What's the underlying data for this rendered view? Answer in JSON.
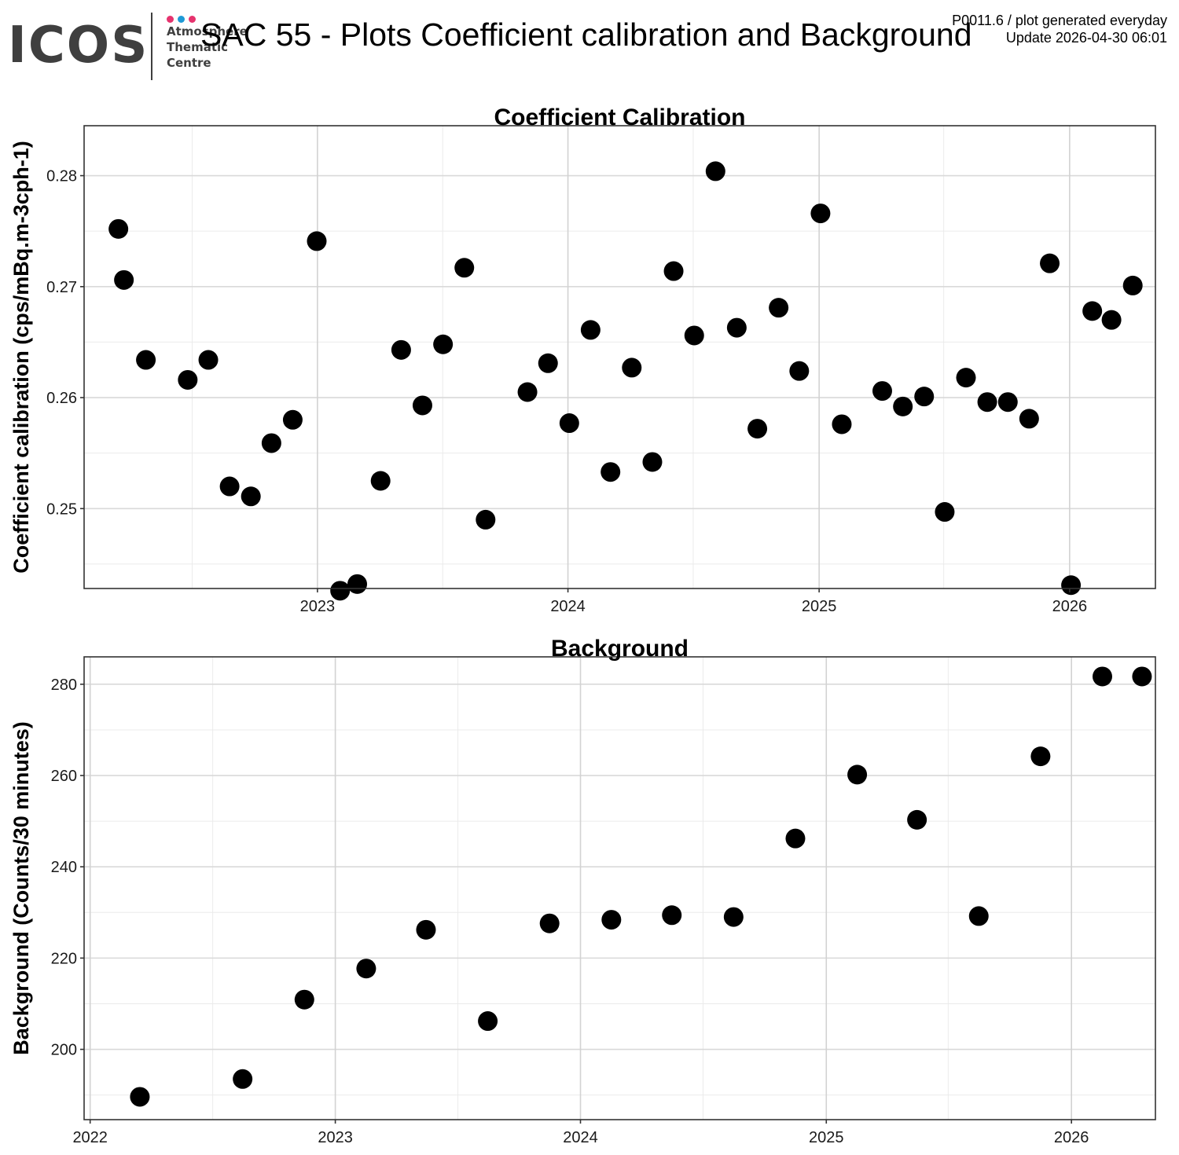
{
  "header": {
    "logo_text": "ICOS",
    "logo_subtitle": [
      "Atmosphere",
      "Thematic",
      "Centre"
    ],
    "logo_dot_colors": [
      "#e6336e",
      "#1e9ad6",
      "#e6336e"
    ],
    "title": "SAC 55 - Plots Coefficient calibration and Background",
    "meta_line1": "P0011.6 / plot generated everyday",
    "meta_line2": "Update  2026-04-30 06:01"
  },
  "chart_data": [
    {
      "type": "scatter",
      "title": "Coefficient Calibration",
      "xlabel": "",
      "ylabel": "Coefficient calibration (cps/mBq.m-3cph-1)",
      "xlim": [
        "2022-01-26",
        "2026-05-06"
      ],
      "ylim": [
        0.2428,
        0.2845
      ],
      "x_ticks": [
        "2023-01-01",
        "2024-01-01",
        "2025-01-01",
        "2026-01-01"
      ],
      "x_tick_labels": [
        "2023",
        "2024",
        "2025",
        "2026"
      ],
      "y_ticks": [
        0.25,
        0.26,
        0.27,
        0.28
      ],
      "y_tick_labels": [
        "0.25",
        "0.26",
        "0.27",
        "0.28"
      ],
      "grid": true,
      "point_color": "#000000",
      "x": [
        "2022-03-17",
        "2022-03-25",
        "2022-04-26",
        "2022-06-26",
        "2022-07-26",
        "2022-08-26",
        "2022-09-26",
        "2022-10-26",
        "2022-11-26",
        "2022-12-31",
        "2023-02-03",
        "2023-02-28",
        "2023-04-03",
        "2023-05-03",
        "2023-06-03",
        "2023-07-03",
        "2023-08-03",
        "2023-09-03",
        "2023-11-03",
        "2023-12-03",
        "2024-01-03",
        "2024-02-03",
        "2024-03-03",
        "2024-04-03",
        "2024-05-03",
        "2024-06-03",
        "2024-07-03",
        "2024-08-03",
        "2024-09-03",
        "2024-10-03",
        "2024-11-03",
        "2024-12-03",
        "2025-01-03",
        "2025-02-03",
        "2025-04-03",
        "2025-05-03",
        "2025-06-03",
        "2025-07-03",
        "2025-08-03",
        "2025-09-03",
        "2025-10-03",
        "2025-11-03",
        "2025-12-03",
        "2026-01-03",
        "2026-02-03",
        "2026-03-03",
        "2026-04-03"
      ],
      "y": [
        0.2752,
        0.2706,
        0.2634,
        0.2616,
        0.2634,
        0.252,
        0.2511,
        0.2559,
        0.258,
        0.2741,
        0.2426,
        0.2432,
        0.2525,
        0.2643,
        0.2593,
        0.2648,
        0.2717,
        0.249,
        0.2605,
        0.2631,
        0.2577,
        0.2661,
        0.2533,
        0.2627,
        0.2542,
        0.2714,
        0.2656,
        0.2804,
        0.2663,
        0.2572,
        0.2681,
        0.2624,
        0.2766,
        0.2576,
        0.2606,
        0.2592,
        0.2601,
        0.2497,
        0.2618,
        0.2596,
        0.2596,
        0.2581,
        0.2721,
        0.2431,
        0.2678,
        0.267,
        0.2701
      ]
    },
    {
      "type": "scatter",
      "title": "Background",
      "xlabel": "",
      "ylabel": "Background (Counts/30 minutes)",
      "xlim": [
        "2021-12-23",
        "2026-05-06"
      ],
      "ylim": [
        184.6,
        286.0
      ],
      "x_ticks": [
        "2022-01-01",
        "2023-01-01",
        "2024-01-01",
        "2025-01-01",
        "2026-01-01"
      ],
      "x_tick_labels": [
        "2022",
        "2023",
        "2024",
        "2025",
        "2026"
      ],
      "y_ticks": [
        200,
        220,
        240,
        260,
        280
      ],
      "y_tick_labels": [
        "200",
        "220",
        "240",
        "260",
        "280"
      ],
      "grid": true,
      "point_color": "#000000",
      "x": [
        "2022-03-16",
        "2022-08-16",
        "2022-11-16",
        "2023-02-16",
        "2023-05-16",
        "2023-08-16",
        "2023-11-16",
        "2024-02-16",
        "2024-05-16",
        "2024-08-16",
        "2024-11-16",
        "2025-02-16",
        "2025-05-16",
        "2025-08-16",
        "2025-11-16",
        "2026-02-16",
        "2026-04-16"
      ],
      "y": [
        189.6,
        193.5,
        210.9,
        217.7,
        226.2,
        206.2,
        227.6,
        228.4,
        229.4,
        229.0,
        246.2,
        260.2,
        250.3,
        229.2,
        264.2,
        281.7,
        281.7
      ]
    }
  ]
}
